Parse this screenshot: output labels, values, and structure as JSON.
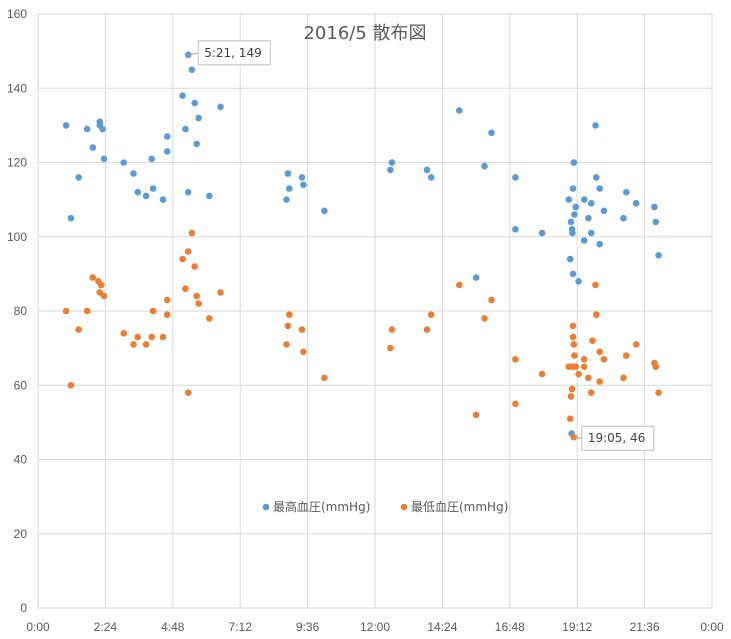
{
  "chart_data": {
    "type": "scatter",
    "title": "2016/5 散布図",
    "xlabel": "",
    "ylabel": "",
    "xlim": [
      0,
      24
    ],
    "ylim": [
      0,
      160
    ],
    "x_ticks": [
      "0:00",
      "2:24",
      "4:48",
      "7:12",
      "9:36",
      "12:00",
      "14:24",
      "16:48",
      "19:12",
      "21:36",
      "0:00"
    ],
    "y_ticks": [
      "0",
      "20",
      "40",
      "60",
      "80",
      "100",
      "120",
      "140",
      "160"
    ],
    "grid": true,
    "legend_position": "bottom-center",
    "series": [
      {
        "name": "最高血圧(mmHg)",
        "color": "#5b9bd5",
        "points": [
          [
            1.0,
            130
          ],
          [
            1.17,
            105
          ],
          [
            1.45,
            116
          ],
          [
            1.75,
            129
          ],
          [
            1.95,
            124
          ],
          [
            2.2,
            131
          ],
          [
            2.2,
            130
          ],
          [
            2.3,
            129
          ],
          [
            2.35,
            121
          ],
          [
            3.05,
            120
          ],
          [
            3.4,
            117
          ],
          [
            3.55,
            112
          ],
          [
            3.85,
            111
          ],
          [
            4.1,
            113
          ],
          [
            4.05,
            121
          ],
          [
            4.45,
            110
          ],
          [
            4.6,
            127
          ],
          [
            4.6,
            123
          ],
          [
            5.15,
            138
          ],
          [
            5.25,
            129
          ],
          [
            5.35,
            149
          ],
          [
            5.35,
            112
          ],
          [
            5.48,
            145
          ],
          [
            5.58,
            136
          ],
          [
            5.65,
            125
          ],
          [
            5.72,
            132
          ],
          [
            6.1,
            111
          ],
          [
            6.5,
            135
          ],
          [
            8.85,
            110
          ],
          [
            8.9,
            117
          ],
          [
            8.95,
            113
          ],
          [
            9.4,
            116
          ],
          [
            9.45,
            114
          ],
          [
            10.2,
            107
          ],
          [
            12.6,
            120
          ],
          [
            12.55,
            118
          ],
          [
            13.85,
            118
          ],
          [
            14.0,
            116
          ],
          [
            15.0,
            134
          ],
          [
            15.6,
            89
          ],
          [
            15.9,
            119
          ],
          [
            16.15,
            128
          ],
          [
            17.0,
            116
          ],
          [
            17.0,
            102
          ],
          [
            17.95,
            101
          ],
          [
            18.9,
            110
          ],
          [
            18.95,
            94
          ],
          [
            18.98,
            104
          ],
          [
            19.02,
            102
          ],
          [
            19.03,
            101
          ],
          [
            19.05,
            90
          ],
          [
            19.05,
            113
          ],
          [
            19.08,
            120
          ],
          [
            19.1,
            106
          ],
          [
            19.15,
            108
          ],
          [
            19.25,
            88
          ],
          [
            19.45,
            110
          ],
          [
            19.45,
            99
          ],
          [
            19.6,
            105
          ],
          [
            19.7,
            101
          ],
          [
            19.7,
            109
          ],
          [
            19.85,
            130
          ],
          [
            19.88,
            116
          ],
          [
            20.0,
            113
          ],
          [
            20.0,
            98
          ],
          [
            20.15,
            107
          ],
          [
            20.85,
            105
          ],
          [
            20.95,
            112
          ],
          [
            21.3,
            109
          ],
          [
            21.95,
            108
          ],
          [
            22.0,
            104
          ],
          [
            22.1,
            95
          ],
          [
            19.0,
            47
          ]
        ]
      },
      {
        "name": "最低血圧(mmHg)",
        "color": "#ed7d31",
        "points": [
          [
            1.0,
            80
          ],
          [
            1.17,
            60
          ],
          [
            1.45,
            75
          ],
          [
            1.75,
            80
          ],
          [
            1.95,
            89
          ],
          [
            2.15,
            88
          ],
          [
            2.2,
            85
          ],
          [
            2.25,
            87
          ],
          [
            2.35,
            84
          ],
          [
            3.05,
            74
          ],
          [
            3.4,
            71
          ],
          [
            3.55,
            73
          ],
          [
            3.85,
            71
          ],
          [
            4.05,
            73
          ],
          [
            4.1,
            80
          ],
          [
            4.45,
            73
          ],
          [
            4.6,
            83
          ],
          [
            4.6,
            79
          ],
          [
            5.15,
            94
          ],
          [
            5.25,
            86
          ],
          [
            5.35,
            96
          ],
          [
            5.35,
            58
          ],
          [
            5.48,
            101
          ],
          [
            5.58,
            92
          ],
          [
            5.65,
            84
          ],
          [
            5.72,
            82
          ],
          [
            6.1,
            78
          ],
          [
            6.5,
            85
          ],
          [
            8.85,
            71
          ],
          [
            8.9,
            76
          ],
          [
            8.95,
            79
          ],
          [
            9.4,
            75
          ],
          [
            9.45,
            69
          ],
          [
            10.2,
            62
          ],
          [
            12.6,
            75
          ],
          [
            12.55,
            70
          ],
          [
            13.85,
            75
          ],
          [
            14.0,
            79
          ],
          [
            15.0,
            87
          ],
          [
            15.6,
            52
          ],
          [
            15.9,
            78
          ],
          [
            16.15,
            83
          ],
          [
            17.0,
            67
          ],
          [
            17.0,
            55
          ],
          [
            17.95,
            63
          ],
          [
            18.9,
            65
          ],
          [
            18.95,
            51
          ],
          [
            18.98,
            57
          ],
          [
            19.02,
            59
          ],
          [
            19.03,
            65
          ],
          [
            19.05,
            73
          ],
          [
            19.05,
            76
          ],
          [
            19.08,
            71
          ],
          [
            19.1,
            68
          ],
          [
            19.15,
            65
          ],
          [
            19.25,
            63
          ],
          [
            19.45,
            67
          ],
          [
            19.45,
            65
          ],
          [
            19.6,
            62
          ],
          [
            19.7,
            58
          ],
          [
            19.75,
            72
          ],
          [
            19.85,
            87
          ],
          [
            19.88,
            79
          ],
          [
            20.0,
            69
          ],
          [
            20.0,
            61
          ],
          [
            20.15,
            67
          ],
          [
            20.85,
            62
          ],
          [
            20.95,
            68
          ],
          [
            21.3,
            71
          ],
          [
            21.95,
            66
          ],
          [
            22.0,
            65
          ],
          [
            22.1,
            58
          ],
          [
            19.08,
            46
          ]
        ]
      }
    ],
    "annotations": [
      {
        "text": "5:21, 149",
        "x": 5.35,
        "y": 149
      },
      {
        "text": "19:05, 46",
        "x": 19.08,
        "y": 46
      }
    ]
  }
}
